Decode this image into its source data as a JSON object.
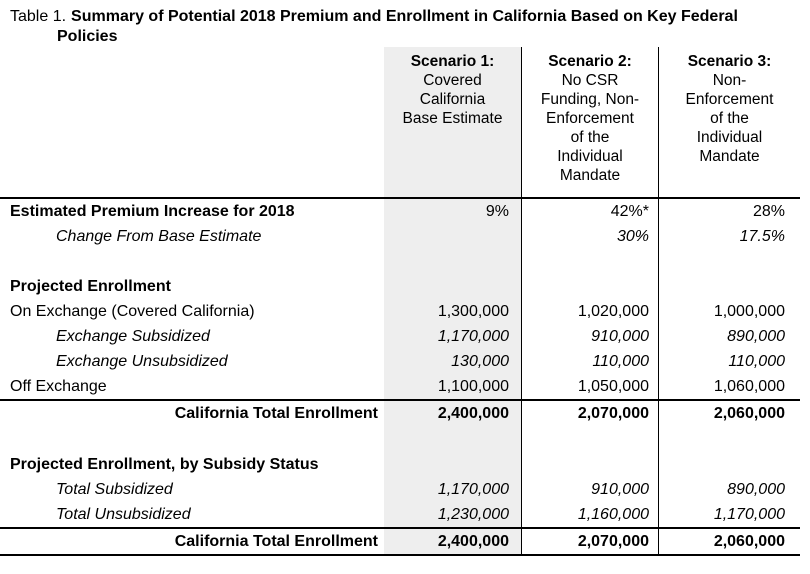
{
  "colors": {
    "scenario1_column_shade": "#eeeeee",
    "rule": "#000000",
    "text": "#000000",
    "background": "#ffffff"
  },
  "title": {
    "prefix": "Table 1.",
    "text": "Summary of Potential 2018 Premium and Enrollment in California Based on Key Federal Policies"
  },
  "table": {
    "columns": [
      {
        "title": "Scenario 1:",
        "subtitle": "Covered\nCalifornia\nBase Estimate"
      },
      {
        "title": "Scenario 2:",
        "subtitle": "No CSR\nFunding, Non-\nEnforcement\nof the\nIndividual\nMandate"
      },
      {
        "title": "Scenario 3:",
        "subtitle": "Non-\nEnforcement\nof the\nIndividual\nMandate"
      }
    ],
    "rows": [
      {
        "label": "Estimated Premium Increase for 2018",
        "label_style": "bold",
        "value_style": "normal",
        "values": [
          "9%",
          "42%*",
          "28%"
        ]
      },
      {
        "label": "Change From Base Estimate",
        "label_style": "italic-indent",
        "value_style": "italic",
        "values": [
          "",
          "30%",
          "17.5%"
        ]
      },
      {
        "type": "spacer",
        "label": "",
        "values": [
          "",
          "",
          ""
        ]
      },
      {
        "label": "Projected Enrollment",
        "label_style": "bold",
        "values": [
          "",
          "",
          ""
        ]
      },
      {
        "label": "On Exchange (Covered California)",
        "values": [
          "1,300,000",
          "1,020,000",
          "1,000,000"
        ]
      },
      {
        "label": "Exchange Subsidized",
        "label_style": "italic-indent",
        "value_style": "italic",
        "values": [
          "1,170,000",
          "910,000",
          "890,000"
        ]
      },
      {
        "label": "Exchange Unsubsidized",
        "label_style": "italic-indent",
        "value_style": "italic",
        "values": [
          "130,000",
          "110,000",
          "110,000"
        ]
      },
      {
        "label": "Off Exchange",
        "values": [
          "1,100,000",
          "1,050,000",
          "1,060,000"
        ]
      },
      {
        "type": "total",
        "label": "California Total Enrollment",
        "values": [
          "2,400,000",
          "2,070,000",
          "2,060,000"
        ]
      },
      {
        "type": "spacer",
        "label": "",
        "values": [
          "",
          "",
          ""
        ]
      },
      {
        "label": "Projected Enrollment, by Subsidy Status",
        "label_style": "bold",
        "values": [
          "",
          "",
          ""
        ]
      },
      {
        "label": "Total Subsidized",
        "label_style": "italic-indent",
        "value_style": "italic",
        "values": [
          "1,170,000",
          "910,000",
          "890,000"
        ]
      },
      {
        "label": "Total Unsubsidized",
        "label_style": "italic-indent",
        "value_style": "italic",
        "values": [
          "1,230,000",
          "1,160,000",
          "1,170,000"
        ]
      },
      {
        "type": "total",
        "label": "California Total Enrollment",
        "values": [
          "2,400,000",
          "2,070,000",
          "2,060,000"
        ]
      }
    ]
  }
}
